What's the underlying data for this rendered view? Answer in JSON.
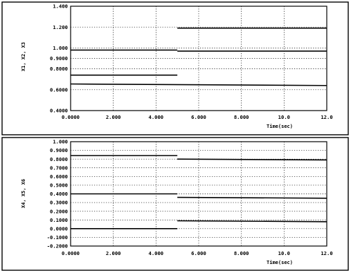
{
  "chart_data": [
    {
      "type": "line",
      "title": "",
      "xlabel": "Time(sec)",
      "ylabel": "X1, X2, X3",
      "xlim": [
        0,
        12
      ],
      "ylim": [
        0.4,
        1.4
      ],
      "x_ticks": [
        0,
        2,
        4,
        6,
        8,
        10,
        12
      ],
      "x_tick_labels": [
        "0.0000",
        "2.000",
        "4.000",
        "6.000",
        "8.000",
        "10.0",
        "12.0"
      ],
      "y_ticks": [
        0.4,
        0.6,
        0.8,
        0.9,
        1.0,
        1.2,
        1.4
      ],
      "y_tick_labels": [
        "0.4000",
        "0.6000",
        "0.8000",
        "0.9000",
        "1.000",
        "1.200",
        "1.400"
      ],
      "grid": true,
      "series": [
        {
          "points": [
            [
              0,
              0.98
            ],
            [
              5,
              0.98
            ],
            [
              5,
              0.97
            ],
            [
              12,
              0.97
            ]
          ]
        },
        {
          "points": [
            [
              0,
              0.74
            ],
            [
              5,
              0.74
            ],
            [
              5,
              1.19
            ],
            [
              12,
              1.19
            ]
          ]
        },
        {
          "points": [
            [
              0,
              0.655
            ],
            [
              12,
              0.64
            ]
          ]
        }
      ]
    },
    {
      "type": "line",
      "title": "",
      "xlabel": "Time(sec)",
      "ylabel": "X4, X5, X6",
      "xlim": [
        0,
        12
      ],
      "ylim": [
        -0.2,
        1.0
      ],
      "x_ticks": [
        0,
        2,
        4,
        6,
        8,
        10,
        12
      ],
      "x_tick_labels": [
        "0.0000",
        "2.000",
        "4.000",
        "6.000",
        "8.000",
        "10.0",
        "12.0"
      ],
      "y_ticks": [
        -0.2,
        -0.1,
        0.0,
        0.1,
        0.2,
        0.3,
        0.4,
        0.5,
        0.6,
        0.7,
        0.8,
        0.9,
        1.0
      ],
      "y_tick_labels": [
        "-0.2000",
        "-0.1000",
        "0.0000",
        "0.1000",
        "0.2000",
        "0.3000",
        "0.4000",
        "0.5000",
        "0.6000",
        "0.7000",
        "0.8000",
        "0.9000",
        "1.000"
      ],
      "grid": true,
      "series": [
        {
          "points": [
            [
              0,
              0.84
            ],
            [
              5,
              0.84
            ],
            [
              5,
              0.8
            ],
            [
              12,
              0.79
            ]
          ]
        },
        {
          "points": [
            [
              0,
              0.4
            ],
            [
              5,
              0.4
            ],
            [
              5,
              0.36
            ],
            [
              12,
              0.35
            ]
          ]
        },
        {
          "points": [
            [
              0,
              0.0
            ],
            [
              5,
              0.0
            ],
            [
              5,
              0.09
            ],
            [
              12,
              0.08
            ]
          ]
        }
      ]
    }
  ]
}
